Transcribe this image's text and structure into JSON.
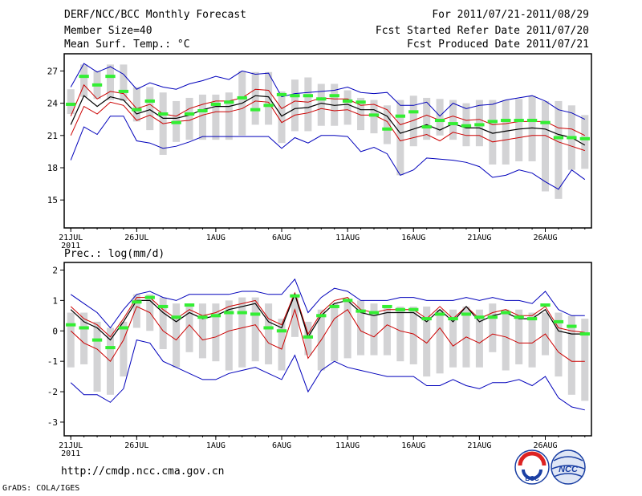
{
  "header": {
    "title": "DERF/NCC/BCC Monthly Forecast",
    "member_size": "Member Size=40",
    "variable": "Mean Surf. Temp.: °C",
    "period": "For 2011/07/21-2011/08/29",
    "refer_date": "Fcst Started Refer Date 2011/07/20",
    "produced_date": "Fcst Produced Date 2011/07/21"
  },
  "footer": {
    "url": "http://cmdp.ncc.cma.gov.cn",
    "credit": "GrADS: COLA/IGES",
    "logo_bcc": "BCC",
    "logo_ncc": "NCC"
  },
  "colors": {
    "box": "#d3d3d5",
    "obs": "#33ee33",
    "mean": "#000000",
    "spread": "#cc0000",
    "extreme": "#0000bb"
  },
  "chart_data": [
    {
      "id": "temperature",
      "type": "box",
      "title": "",
      "ylim": [
        12.4,
        28.6
      ],
      "yticks": [
        15,
        18,
        21,
        24,
        27
      ],
      "xlim": [
        0.5,
        40.5
      ],
      "xticks": [
        {
          "day": 1,
          "label": "21JUL",
          "sub": "2011"
        },
        {
          "day": 6,
          "label": "26JUL"
        },
        {
          "day": 12,
          "label": "1AUG"
        },
        {
          "day": 17,
          "label": "6AUG"
        },
        {
          "day": 22,
          "label": "11AUG"
        },
        {
          "day": 27,
          "label": "16AUG"
        },
        {
          "day": 32,
          "label": "21AUG"
        },
        {
          "day": 37,
          "label": "26AUG"
        }
      ],
      "series": {
        "box_low": [
          23.0,
          24.6,
          24.4,
          24.3,
          24.2,
          22.3,
          21.5,
          19.2,
          20.4,
          20.6,
          20.6,
          20.6,
          20.6,
          21.0,
          22.0,
          22.0,
          20.3,
          21.4,
          21.4,
          21.9,
          21.9,
          22.0,
          21.5,
          21.2,
          20.2,
          17.3,
          20.0,
          20.6,
          21.0,
          20.6,
          20.0,
          20.0,
          18.3,
          18.3,
          18.6,
          18.6,
          15.8,
          15.1,
          17.8,
          17.9
        ],
        "box_high": [
          25.3,
          27.6,
          27.0,
          27.6,
          27.6,
          25.5,
          25.5,
          25.0,
          24.2,
          24.5,
          24.8,
          24.8,
          25.0,
          27.0,
          26.9,
          26.9,
          25.1,
          26.2,
          26.4,
          25.8,
          25.8,
          25.2,
          24.5,
          24.3,
          23.8,
          24.3,
          24.7,
          24.5,
          24.4,
          24.3,
          24.0,
          24.3,
          24.3,
          24.3,
          24.4,
          24.7,
          24.2,
          24.2,
          23.8,
          22.9
        ],
        "obs": [
          23.9,
          26.5,
          25.7,
          26.5,
          25.1,
          23.4,
          24.2,
          23.0,
          22.2,
          23.0,
          23.3,
          23.9,
          24.1,
          24.5,
          23.4,
          23.8,
          24.8,
          24.7,
          24.7,
          24.4,
          24.7,
          24.2,
          24.1,
          22.9,
          21.6,
          22.8,
          23.2,
          21.8,
          22.4,
          22.1,
          21.9,
          22.0,
          22.3,
          22.4,
          22.4,
          22.4,
          22.2,
          20.8,
          20.8,
          20.7
        ],
        "mean": [
          22.0,
          24.7,
          23.7,
          24.6,
          24.3,
          23.0,
          23.4,
          22.6,
          22.6,
          22.9,
          23.4,
          23.7,
          23.7,
          24.0,
          24.7,
          24.6,
          22.8,
          23.5,
          23.6,
          24.0,
          23.8,
          23.9,
          23.4,
          23.4,
          22.8,
          21.2,
          21.6,
          22.0,
          21.5,
          22.1,
          21.7,
          21.7,
          21.2,
          21.4,
          21.6,
          21.7,
          21.6,
          21.1,
          20.8,
          20.1
        ],
        "upper": [
          22.8,
          25.7,
          24.4,
          25.1,
          24.9,
          23.5,
          23.9,
          23.0,
          22.8,
          23.5,
          23.9,
          24.2,
          24.2,
          24.5,
          25.3,
          25.2,
          23.5,
          24.2,
          24.1,
          24.5,
          24.4,
          24.4,
          23.8,
          23.9,
          23.4,
          22.0,
          22.4,
          22.9,
          22.4,
          22.8,
          22.4,
          22.5,
          22.0,
          22.1,
          22.3,
          22.3,
          22.3,
          21.7,
          21.6,
          21.0
        ],
        "lower": [
          21.0,
          23.7,
          23.0,
          24.1,
          23.8,
          22.4,
          22.9,
          22.1,
          22.3,
          22.4,
          22.9,
          23.2,
          23.2,
          23.5,
          24.2,
          24.1,
          22.2,
          22.9,
          23.1,
          23.5,
          23.3,
          23.4,
          22.9,
          22.9,
          22.3,
          20.5,
          20.8,
          21.1,
          20.5,
          21.3,
          21.0,
          21.0,
          20.4,
          20.6,
          20.8,
          21.0,
          21.0,
          20.4,
          20.0,
          19.6
        ],
        "max": [
          25.5,
          27.7,
          26.9,
          27.4,
          26.7,
          25.3,
          25.9,
          25.5,
          25.3,
          25.8,
          26.1,
          26.5,
          26.2,
          27.0,
          26.7,
          26.8,
          24.6,
          24.9,
          25.0,
          25.1,
          25.2,
          25.5,
          25.0,
          24.9,
          25.0,
          23.8,
          23.8,
          24.1,
          22.8,
          24.0,
          23.5,
          23.8,
          23.9,
          24.3,
          24.5,
          24.7,
          24.2,
          23.4,
          23.1,
          22.5
        ],
        "min": [
          18.7,
          21.8,
          21.1,
          22.8,
          22.8,
          20.5,
          20.3,
          19.8,
          20.0,
          20.4,
          20.9,
          20.9,
          20.9,
          20.9,
          20.9,
          20.9,
          19.8,
          20.8,
          20.3,
          21.0,
          21.0,
          20.9,
          19.5,
          19.9,
          19.3,
          17.3,
          17.8,
          18.9,
          18.8,
          18.7,
          18.5,
          18.1,
          17.1,
          17.3,
          17.8,
          17.5,
          16.7,
          16.0,
          17.8,
          16.9
        ]
      }
    },
    {
      "id": "precipitation",
      "type": "box",
      "title": "Prec.: log(mm/d)",
      "ylim": [
        -3.45,
        2.25
      ],
      "yticks": [
        -3,
        -2,
        -1,
        0,
        1,
        2
      ],
      "xlim": [
        0.5,
        40.5
      ],
      "xticks": [
        {
          "day": 1,
          "label": "21JUL",
          "sub": "2011"
        },
        {
          "day": 6,
          "label": "26JUL"
        },
        {
          "day": 12,
          "label": "1AUG"
        },
        {
          "day": 17,
          "label": "6AUG"
        },
        {
          "day": 22,
          "label": "11AUG"
        },
        {
          "day": 27,
          "label": "16AUG"
        },
        {
          "day": 32,
          "label": "21AUG"
        },
        {
          "day": 37,
          "label": "26AUG"
        }
      ],
      "series": {
        "box_low": [
          -1.2,
          -1.1,
          -2.0,
          -2.1,
          -1.5,
          0.1,
          0.0,
          -0.6,
          -1.2,
          -0.7,
          -0.9,
          -1.0,
          -1.3,
          -1.2,
          -1.0,
          -1.1,
          -1.3,
          -0.2,
          -0.8,
          -1.3,
          -1.0,
          -0.9,
          -0.8,
          -0.8,
          -0.8,
          -1.0,
          -1.1,
          -1.5,
          -1.4,
          -1.2,
          -1.2,
          -1.2,
          -0.7,
          -1.3,
          -1.1,
          -1.2,
          -0.8,
          -1.5,
          -2.1,
          -2.3
        ],
        "box_high": [
          0.6,
          0.6,
          0.3,
          0.1,
          0.3,
          1.2,
          1.2,
          1.1,
          0.9,
          0.9,
          0.9,
          0.9,
          1.0,
          1.1,
          1.1,
          0.9,
          0.4,
          1.2,
          0.3,
          0.7,
          0.9,
          1.0,
          1.0,
          0.9,
          0.8,
          0.8,
          0.8,
          0.8,
          0.7,
          0.7,
          0.8,
          0.7,
          0.9,
          0.7,
          0.7,
          0.6,
          0.6,
          0.6,
          0.5,
          0.4
        ],
        "obs": [
          0.2,
          0.1,
          -0.3,
          -0.55,
          0.1,
          0.95,
          1.1,
          0.8,
          0.45,
          0.85,
          0.45,
          0.5,
          0.6,
          0.6,
          0.55,
          0.1,
          0.0,
          1.15,
          -0.2,
          0.5,
          0.8,
          1.0,
          0.65,
          0.6,
          0.8,
          0.7,
          0.7,
          0.4,
          0.55,
          0.4,
          0.55,
          0.45,
          0.45,
          0.6,
          0.45,
          0.4,
          0.85,
          0.3,
          0.15,
          -0.1
        ],
        "mean": [
          0.7,
          0.3,
          0.1,
          -0.3,
          0.3,
          1.0,
          1.0,
          0.6,
          0.3,
          0.6,
          0.4,
          0.5,
          0.7,
          0.8,
          0.9,
          0.3,
          0.1,
          1.2,
          -0.2,
          0.5,
          0.9,
          1.0,
          0.6,
          0.5,
          0.6,
          0.6,
          0.6,
          0.3,
          0.7,
          0.3,
          0.8,
          0.3,
          0.5,
          0.6,
          0.4,
          0.4,
          0.7,
          0.0,
          -0.1,
          -0.1
        ],
        "upper": [
          0.8,
          0.4,
          0.2,
          -0.2,
          0.4,
          1.1,
          1.1,
          0.7,
          0.4,
          0.7,
          0.5,
          0.6,
          0.8,
          0.9,
          1.0,
          0.4,
          0.2,
          1.25,
          -0.1,
          0.6,
          1.0,
          1.1,
          0.7,
          0.6,
          0.7,
          0.7,
          0.7,
          0.4,
          0.8,
          0.4,
          0.8,
          0.4,
          0.6,
          0.7,
          0.5,
          0.5,
          0.8,
          0.1,
          0.0,
          -0.05
        ],
        "lower": [
          0.0,
          -0.4,
          -0.6,
          -1.0,
          -0.3,
          0.8,
          0.6,
          0.0,
          -0.3,
          0.2,
          -0.3,
          -0.2,
          0.0,
          0.1,
          0.2,
          -0.4,
          -0.6,
          0.7,
          -0.9,
          -0.3,
          0.4,
          0.7,
          0.0,
          -0.2,
          0.2,
          0.0,
          -0.1,
          -0.4,
          0.1,
          -0.5,
          -0.2,
          -0.4,
          -0.1,
          -0.2,
          -0.4,
          -0.4,
          -0.1,
          -0.7,
          -1.0,
          -1.0
        ],
        "max": [
          1.2,
          0.9,
          0.6,
          0.1,
          0.7,
          1.2,
          1.3,
          1.1,
          1.0,
          1.2,
          1.2,
          1.2,
          1.2,
          1.3,
          1.3,
          1.2,
          1.2,
          1.7,
          0.6,
          1.1,
          1.4,
          1.3,
          1.0,
          1.0,
          1.0,
          1.1,
          1.1,
          1.0,
          1.0,
          1.0,
          1.1,
          1.0,
          1.1,
          1.0,
          1.0,
          0.9,
          1.3,
          0.7,
          0.5,
          0.5
        ],
        "min": [
          -1.7,
          -2.1,
          -2.1,
          -2.35,
          -1.9,
          -0.3,
          -0.4,
          -1.0,
          -1.2,
          -1.4,
          -1.6,
          -1.6,
          -1.4,
          -1.3,
          -1.2,
          -1.4,
          -1.6,
          -0.8,
          -2.0,
          -1.3,
          -1.0,
          -1.2,
          -1.3,
          -1.4,
          -1.5,
          -1.5,
          -1.5,
          -1.8,
          -1.8,
          -1.6,
          -1.8,
          -1.9,
          -1.7,
          -1.7,
          -1.6,
          -1.8,
          -1.5,
          -2.2,
          -2.5,
          -2.6
        ]
      }
    }
  ]
}
